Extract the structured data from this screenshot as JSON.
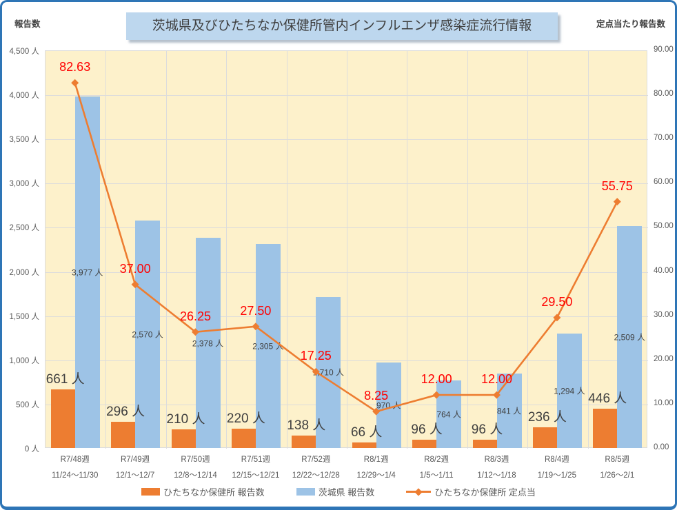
{
  "header": {
    "title": "茨城県及びひたちなか保健所管内インフルエンザ感染症流行情報",
    "left_axis_title": "報告数",
    "right_axis_title": "定点当たり報告数"
  },
  "colors": {
    "orange": "#ED7D31",
    "blue": "#9DC3E6",
    "label_red": "#FF0000",
    "plot_bg": "#FDF1CB",
    "border_blue": "#2E75B6",
    "title_bg": "#BDD7EE",
    "axis_text": "#595959"
  },
  "chart_data": {
    "type": "combo-bar-line",
    "title": "茨城県及びひたちなか保健所管内インフルエンザ感染症流行情報",
    "grid": "on",
    "legend_position": "bottom",
    "categories": [
      {
        "week": "R7/48週",
        "dates": "11/24～11/30"
      },
      {
        "week": "R7/49週",
        "dates": "12/1～12/7"
      },
      {
        "week": "R7/50週",
        "dates": "12/8～12/14"
      },
      {
        "week": "R7/51週",
        "dates": "12/15～12/21"
      },
      {
        "week": "R7/52週",
        "dates": "12/22～12/28"
      },
      {
        "week": "R8/1週",
        "dates": "12/29～1/4"
      },
      {
        "week": "R8/2週",
        "dates": "1/5～1/11"
      },
      {
        "week": "R8/3週",
        "dates": "1/12～1/18"
      },
      {
        "week": "R8/4週",
        "dates": "1/19～1/25"
      },
      {
        "week": "R8/5週",
        "dates": "1/26～2/1"
      }
    ],
    "series": [
      {
        "name": "ひたちなか保健所 報告数",
        "type": "bar",
        "axis": "left",
        "color": "#ED7D31",
        "values": [
          661,
          296,
          210,
          220,
          138,
          66,
          96,
          96,
          236,
          446
        ],
        "labels": [
          "661 人",
          "296 人",
          "210 人",
          "220 人",
          "138 人",
          "66 人",
          "96 人",
          "96 人",
          "236 人",
          "446 人"
        ]
      },
      {
        "name": "茨城県 報告数",
        "type": "bar",
        "axis": "left",
        "color": "#9DC3E6",
        "values": [
          3977,
          2570,
          2378,
          2305,
          1710,
          970,
          764,
          841,
          1294,
          2509
        ],
        "labels": [
          "3,977 人",
          "2,570 人",
          "2,378 人",
          "2,305 人",
          "1,710 人",
          "970 人",
          "764 人",
          "841 人",
          "1,294 人",
          "2,509 人"
        ]
      },
      {
        "name": "ひたちなか保健所 定点当",
        "type": "line",
        "axis": "right",
        "color": "#ED7D31",
        "marker": "diamond",
        "values": [
          82.63,
          37.0,
          26.25,
          27.5,
          17.25,
          8.25,
          12.0,
          12.0,
          29.5,
          55.75
        ],
        "labels": [
          "82.63",
          "37.00",
          "26.25",
          "27.50",
          "17.25",
          "8.25",
          "12.00",
          "12.00",
          "29.50",
          "55.75"
        ]
      }
    ],
    "left_axis": {
      "min": 0,
      "max": 4500,
      "step": 500,
      "suffix": " 人",
      "ticks": [
        "4,500 人",
        "4,000 人",
        "3,500 人",
        "3,000 人",
        "2,500 人",
        "2,000 人",
        "1,500 人",
        "1,000 人",
        "500 人",
        "0 人"
      ]
    },
    "right_axis": {
      "min": 0,
      "max": 90,
      "step": 10,
      "ticks": [
        "90.00",
        "80.00",
        "70.00",
        "60.00",
        "50.00",
        "40.00",
        "30.00",
        "20.00",
        "10.00",
        "0.00"
      ]
    }
  }
}
